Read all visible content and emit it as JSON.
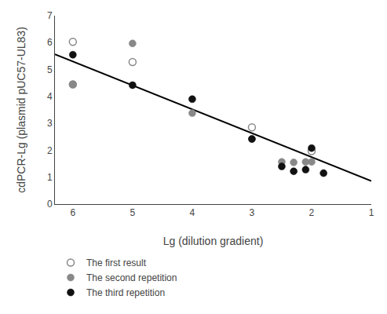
{
  "chart_data": {
    "type": "scatter",
    "xlabel": "Lg (dilution gradient)",
    "ylabel": "cdPCR-Lg (plasmid pUC57-UL83)",
    "xlim": [
      6.3,
      1.0
    ],
    "ylim": [
      0,
      7
    ],
    "xticks": [
      6,
      5,
      4,
      3,
      2,
      1
    ],
    "yticks": [
      0,
      1,
      2,
      3,
      4,
      5,
      6,
      7
    ],
    "grid": false,
    "legend": "bottom",
    "series": [
      {
        "type": "line",
        "color": "black",
        "x": [
          6.3,
          1.0
        ],
        "values": [
          5.5664,
          0.86
        ]
      },
      {
        "type": "scatter",
        "name": "The first result",
        "color": "#888888",
        "marker": "circle-open",
        "x": [
          6,
          6,
          5,
          3,
          2
        ],
        "values": [
          6.03,
          4.45,
          5.28,
          2.85,
          1.97
        ]
      },
      {
        "type": "scatter",
        "name": "The second repetition",
        "color": "#888888",
        "marker": "circle",
        "x": [
          6,
          5,
          4,
          3,
          2,
          2.5,
          2.3,
          2.1
        ],
        "values": [
          4.45,
          5.97,
          3.38,
          2.42,
          1.57,
          1.57,
          1.55,
          1.57
        ]
      },
      {
        "type": "scatter",
        "name": "The third repetition",
        "color": "#111111",
        "marker": "circle",
        "x": [
          6,
          5,
          4,
          3,
          2,
          2.5,
          2.3,
          2.1,
          1.8
        ],
        "values": [
          5.55,
          4.42,
          3.9,
          2.42,
          2.08,
          1.4,
          1.22,
          1.28,
          1.15
        ]
      }
    ]
  }
}
